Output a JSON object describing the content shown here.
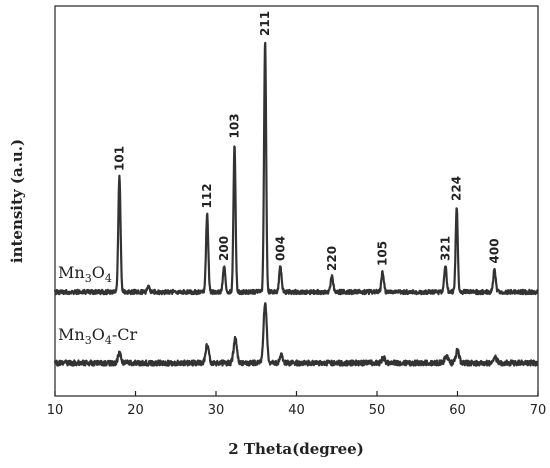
{
  "chart_data": {
    "type": "line",
    "xlabel": "2 Theta(degree)",
    "ylabel": "intensity (a.u.)",
    "xlim": [
      10,
      70
    ],
    "xticks": [
      10,
      20,
      30,
      40,
      50,
      60,
      70
    ],
    "yticks_shown": false,
    "grid": false,
    "color": "#333333",
    "series": [
      {
        "name": "Mn3O4",
        "label_main": "Mn",
        "label_sub1": "3",
        "label_mid": "O",
        "label_sub2": "4",
        "label_suffix": "",
        "baseline": 0.0,
        "peaks": [
          {
            "x": 18.0,
            "h": 0.46,
            "w": 0.28,
            "label": "101"
          },
          {
            "x": 21.6,
            "h": 0.02,
            "w": 0.3,
            "label": ""
          },
          {
            "x": 28.9,
            "h": 0.31,
            "w": 0.28,
            "label": "112"
          },
          {
            "x": 31.0,
            "h": 0.1,
            "w": 0.3,
            "label": "200"
          },
          {
            "x": 32.3,
            "h": 0.59,
            "w": 0.26,
            "label": "103"
          },
          {
            "x": 36.1,
            "h": 1.0,
            "w": 0.26,
            "label": "211"
          },
          {
            "x": 38.0,
            "h": 0.1,
            "w": 0.3,
            "label": "004"
          },
          {
            "x": 44.4,
            "h": 0.06,
            "w": 0.3,
            "label": "220"
          },
          {
            "x": 50.7,
            "h": 0.08,
            "w": 0.3,
            "label": "105"
          },
          {
            "x": 58.5,
            "h": 0.1,
            "w": 0.3,
            "label": "321"
          },
          {
            "x": 59.9,
            "h": 0.34,
            "w": 0.26,
            "label": "224"
          },
          {
            "x": 64.6,
            "h": 0.09,
            "w": 0.3,
            "label": "400"
          }
        ]
      },
      {
        "name": "Mn3O4-Cr",
        "label_main": "Mn",
        "label_sub1": "3",
        "label_mid": "O",
        "label_sub2": "4",
        "label_suffix": "-Cr",
        "baseline": 0.0,
        "peaks": [
          {
            "x": 18.0,
            "h": 0.04,
            "w": 0.35,
            "label": ""
          },
          {
            "x": 28.9,
            "h": 0.07,
            "w": 0.4,
            "label": ""
          },
          {
            "x": 32.4,
            "h": 0.1,
            "w": 0.4,
            "label": ""
          },
          {
            "x": 36.1,
            "h": 0.24,
            "w": 0.4,
            "label": ""
          },
          {
            "x": 38.1,
            "h": 0.03,
            "w": 0.4,
            "label": ""
          },
          {
            "x": 50.8,
            "h": 0.02,
            "w": 0.4,
            "label": ""
          },
          {
            "x": 58.6,
            "h": 0.03,
            "w": 0.4,
            "label": ""
          },
          {
            "x": 60.0,
            "h": 0.05,
            "w": 0.4,
            "label": ""
          },
          {
            "x": 64.7,
            "h": 0.02,
            "w": 0.4,
            "label": ""
          }
        ]
      }
    ]
  }
}
